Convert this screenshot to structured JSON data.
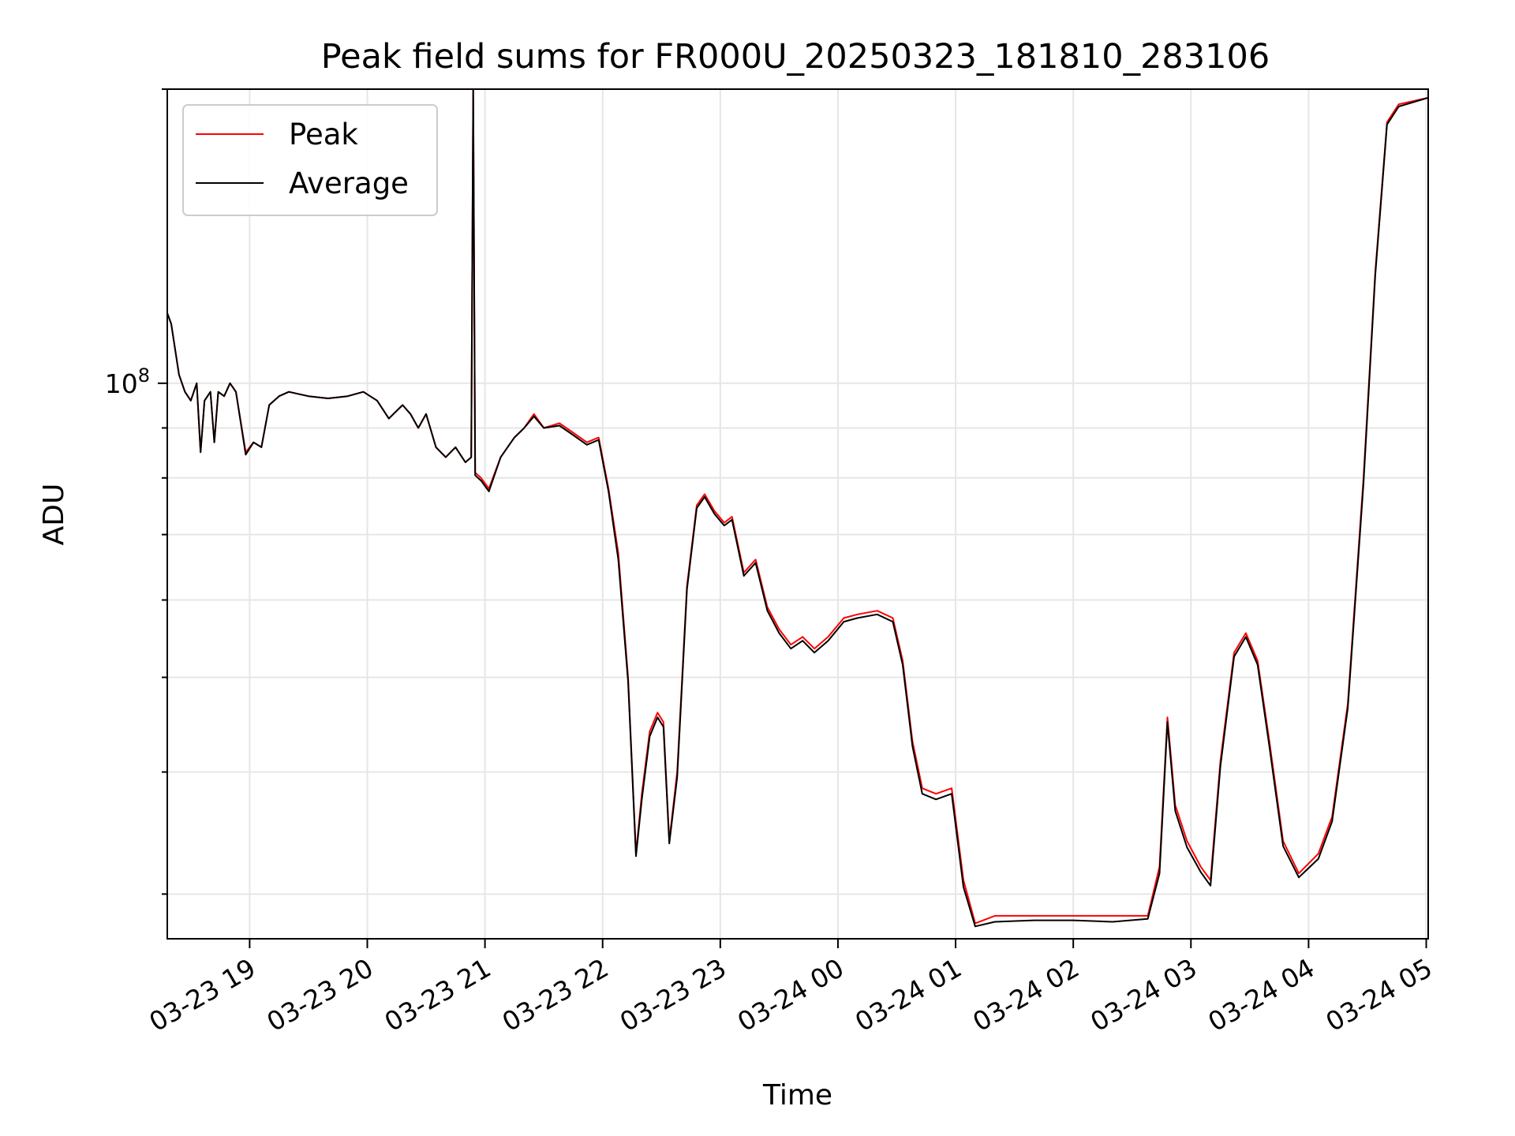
{
  "chart_data": {
    "type": "line",
    "title": "Peak field sums for FR000U_20250323_181810_283106",
    "xlabel": "Time",
    "ylabel": "ADU",
    "y_scale": "log",
    "x_range": [
      "03-23 18:18",
      "03-24 05:01"
    ],
    "ylim": [
      27000000,
      200000000
    ],
    "grid": true,
    "legend_position": "upper-left",
    "x_ticks": [
      "03-23 19",
      "03-23 20",
      "03-23 21",
      "03-23 22",
      "03-23 23",
      "03-24 00",
      "03-24 01",
      "03-24 02",
      "03-24 03",
      "03-24 04",
      "03-24 05"
    ],
    "y_tick_label": {
      "value": 100000000,
      "base": "10",
      "exponent": "8"
    },
    "series": [
      {
        "name": "Peak",
        "color": "#ff0000",
        "points": [
          [
            "03-23 18:18",
            118000000
          ],
          [
            "03-23 18:20",
            115000000
          ],
          [
            "03-23 18:24",
            102000000
          ],
          [
            "03-23 18:27",
            98000000
          ],
          [
            "03-23 18:30",
            96000000
          ],
          [
            "03-23 18:33",
            100000000
          ],
          [
            "03-23 18:35",
            85000000
          ],
          [
            "03-23 18:37",
            96000000
          ],
          [
            "03-23 18:40",
            98000000
          ],
          [
            "03-23 18:42",
            87000000
          ],
          [
            "03-23 18:44",
            98000000
          ],
          [
            "03-23 18:47",
            97000000
          ],
          [
            "03-23 18:50",
            100000000
          ],
          [
            "03-23 18:53",
            98000000
          ],
          [
            "03-23 18:58",
            85000000
          ],
          [
            "03-23 19:02",
            87000000
          ],
          [
            "03-23 19:06",
            86000000
          ],
          [
            "03-23 19:10",
            95000000
          ],
          [
            "03-23 19:15",
            97000000
          ],
          [
            "03-23 19:20",
            98000000
          ],
          [
            "03-23 19:30",
            97000000
          ],
          [
            "03-23 19:40",
            96500000
          ],
          [
            "03-23 19:50",
            97000000
          ],
          [
            "03-23 19:58",
            98000000
          ],
          [
            "03-23 20:05",
            96000000
          ],
          [
            "03-23 20:11",
            92000000
          ],
          [
            "03-23 20:18",
            95000000
          ],
          [
            "03-23 20:22",
            93000000
          ],
          [
            "03-23 20:26",
            90000000
          ],
          [
            "03-23 20:30",
            93000000
          ],
          [
            "03-23 20:35",
            86000000
          ],
          [
            "03-23 20:40",
            84000000
          ],
          [
            "03-23 20:45",
            86000000
          ],
          [
            "03-23 20:50",
            83000000
          ],
          [
            "03-23 20:53",
            84000000
          ],
          [
            "03-23 20:54",
            200000000
          ],
          [
            "03-23 20:55",
            81000000
          ],
          [
            "03-23 20:58",
            80000000
          ],
          [
            "03-23 21:02",
            78000000
          ],
          [
            "03-23 21:08",
            84000000
          ],
          [
            "03-23 21:15",
            88000000
          ],
          [
            "03-23 21:20",
            90000000
          ],
          [
            "03-23 21:25",
            93000000
          ],
          [
            "03-23 21:30",
            90000000
          ],
          [
            "03-23 21:38",
            91000000
          ],
          [
            "03-23 21:45",
            89000000
          ],
          [
            "03-23 21:52",
            87000000
          ],
          [
            "03-23 21:58",
            88000000
          ],
          [
            "03-23 22:03",
            78000000
          ],
          [
            "03-23 22:08",
            67000000
          ],
          [
            "03-23 22:13",
            50000000
          ],
          [
            "03-23 22:17",
            33000000
          ],
          [
            "03-23 22:20",
            38000000
          ],
          [
            "03-23 22:24",
            44000000
          ],
          [
            "03-23 22:28",
            46000000
          ],
          [
            "03-23 22:31",
            45000000
          ],
          [
            "03-23 22:34",
            34000000
          ],
          [
            "03-23 22:38",
            40000000
          ],
          [
            "03-23 22:43",
            62000000
          ],
          [
            "03-23 22:48",
            75000000
          ],
          [
            "03-23 22:52",
            77000000
          ],
          [
            "03-23 22:57",
            74000000
          ],
          [
            "03-23 23:02",
            72000000
          ],
          [
            "03-23 23:06",
            73000000
          ],
          [
            "03-23 23:12",
            64000000
          ],
          [
            "03-23 23:18",
            66000000
          ],
          [
            "03-23 23:24",
            59000000
          ],
          [
            "03-23 23:30",
            56000000
          ],
          [
            "03-23 23:36",
            54000000
          ],
          [
            "03-23 23:42",
            55000000
          ],
          [
            "03-23 23:48",
            53500000
          ],
          [
            "03-23 23:55",
            55000000
          ],
          [
            "03-24 00:03",
            57500000
          ],
          [
            "03-24 00:10",
            58000000
          ],
          [
            "03-24 00:20",
            58500000
          ],
          [
            "03-24 00:28",
            57500000
          ],
          [
            "03-24 00:33",
            52000000
          ],
          [
            "03-24 00:38",
            43000000
          ],
          [
            "03-24 00:43",
            38500000
          ],
          [
            "03-24 00:50",
            38000000
          ],
          [
            "03-24 00:58",
            38500000
          ],
          [
            "03-24 01:04",
            31000000
          ],
          [
            "03-24 01:10",
            28000000
          ],
          [
            "03-24 01:20",
            28500000
          ],
          [
            "03-24 01:40",
            28500000
          ],
          [
            "03-24 02:00",
            28500000
          ],
          [
            "03-24 02:20",
            28500000
          ],
          [
            "03-24 02:38",
            28500000
          ],
          [
            "03-24 02:44",
            32000000
          ],
          [
            "03-24 02:48",
            45500000
          ],
          [
            "03-24 02:52",
            37000000
          ],
          [
            "03-24 02:58",
            34000000
          ],
          [
            "03-24 03:05",
            32000000
          ],
          [
            "03-24 03:10",
            31000000
          ],
          [
            "03-24 03:15",
            41000000
          ],
          [
            "03-24 03:22",
            53000000
          ],
          [
            "03-24 03:28",
            55500000
          ],
          [
            "03-24 03:34",
            52000000
          ],
          [
            "03-24 03:40",
            43000000
          ],
          [
            "03-24 03:47",
            34000000
          ],
          [
            "03-24 03:55",
            31500000
          ],
          [
            "03-24 04:05",
            33000000
          ],
          [
            "03-24 04:12",
            36000000
          ],
          [
            "03-24 04:20",
            47000000
          ],
          [
            "03-24 04:28",
            80000000
          ],
          [
            "03-24 04:34",
            130000000
          ],
          [
            "03-24 04:40",
            185000000
          ],
          [
            "03-24 04:46",
            193000000
          ],
          [
            "03-24 05:01",
            196000000
          ]
        ]
      },
      {
        "name": "Average",
        "color": "#000000",
        "points": [
          [
            "03-23 18:18",
            118000000
          ],
          [
            "03-23 18:20",
            115000000
          ],
          [
            "03-23 18:24",
            102000000
          ],
          [
            "03-23 18:27",
            98000000
          ],
          [
            "03-23 18:30",
            96000000
          ],
          [
            "03-23 18:33",
            100000000
          ],
          [
            "03-23 18:35",
            85000000
          ],
          [
            "03-23 18:37",
            96000000
          ],
          [
            "03-23 18:40",
            98000000
          ],
          [
            "03-23 18:42",
            87000000
          ],
          [
            "03-23 18:44",
            98000000
          ],
          [
            "03-23 18:47",
            97000000
          ],
          [
            "03-23 18:50",
            100000000
          ],
          [
            "03-23 18:53",
            98000000
          ],
          [
            "03-23 18:58",
            84500000
          ],
          [
            "03-23 19:02",
            87000000
          ],
          [
            "03-23 19:06",
            86000000
          ],
          [
            "03-23 19:10",
            95000000
          ],
          [
            "03-23 19:15",
            97000000
          ],
          [
            "03-23 19:20",
            98000000
          ],
          [
            "03-23 19:30",
            97000000
          ],
          [
            "03-23 19:40",
            96500000
          ],
          [
            "03-23 19:50",
            97000000
          ],
          [
            "03-23 19:58",
            98000000
          ],
          [
            "03-23 20:05",
            96000000
          ],
          [
            "03-23 20:11",
            92000000
          ],
          [
            "03-23 20:18",
            95000000
          ],
          [
            "03-23 20:22",
            93000000
          ],
          [
            "03-23 20:26",
            90000000
          ],
          [
            "03-23 20:30",
            93000000
          ],
          [
            "03-23 20:35",
            86000000
          ],
          [
            "03-23 20:40",
            84000000
          ],
          [
            "03-23 20:45",
            86000000
          ],
          [
            "03-23 20:50",
            83000000
          ],
          [
            "03-23 20:53",
            84000000
          ],
          [
            "03-23 20:54",
            200000000
          ],
          [
            "03-23 20:55",
            80500000
          ],
          [
            "03-23 20:58",
            79500000
          ],
          [
            "03-23 21:02",
            77500000
          ],
          [
            "03-23 21:08",
            84000000
          ],
          [
            "03-23 21:15",
            88000000
          ],
          [
            "03-23 21:20",
            90000000
          ],
          [
            "03-23 21:25",
            92500000
          ],
          [
            "03-23 21:30",
            90000000
          ],
          [
            "03-23 21:38",
            90500000
          ],
          [
            "03-23 21:45",
            88500000
          ],
          [
            "03-23 21:52",
            86500000
          ],
          [
            "03-23 21:58",
            87500000
          ],
          [
            "03-23 22:03",
            77500000
          ],
          [
            "03-23 22:08",
            66000000
          ],
          [
            "03-23 22:13",
            49500000
          ],
          [
            "03-23 22:17",
            32800000
          ],
          [
            "03-23 22:20",
            37500000
          ],
          [
            "03-23 22:24",
            43500000
          ],
          [
            "03-23 22:28",
            45500000
          ],
          [
            "03-23 22:31",
            44500000
          ],
          [
            "03-23 22:34",
            33800000
          ],
          [
            "03-23 22:38",
            39500000
          ],
          [
            "03-23 22:43",
            61500000
          ],
          [
            "03-23 22:48",
            74500000
          ],
          [
            "03-23 22:52",
            76500000
          ],
          [
            "03-23 22:57",
            73500000
          ],
          [
            "03-23 23:02",
            71500000
          ],
          [
            "03-23 23:06",
            72500000
          ],
          [
            "03-23 23:12",
            63500000
          ],
          [
            "03-23 23:18",
            65500000
          ],
          [
            "03-23 23:24",
            58500000
          ],
          [
            "03-23 23:30",
            55500000
          ],
          [
            "03-23 23:36",
            53500000
          ],
          [
            "03-23 23:42",
            54500000
          ],
          [
            "03-23 23:48",
            53000000
          ],
          [
            "03-23 23:55",
            54500000
          ],
          [
            "03-24 00:03",
            57000000
          ],
          [
            "03-24 00:10",
            57500000
          ],
          [
            "03-24 00:20",
            58000000
          ],
          [
            "03-24 00:28",
            57000000
          ],
          [
            "03-24 00:33",
            51500000
          ],
          [
            "03-24 00:38",
            42500000
          ],
          [
            "03-24 00:43",
            38000000
          ],
          [
            "03-24 00:50",
            37500000
          ],
          [
            "03-24 00:58",
            38000000
          ],
          [
            "03-24 01:04",
            30500000
          ],
          [
            "03-24 01:10",
            27800000
          ],
          [
            "03-24 01:20",
            28100000
          ],
          [
            "03-24 01:40",
            28200000
          ],
          [
            "03-24 02:00",
            28200000
          ],
          [
            "03-24 02:20",
            28100000
          ],
          [
            "03-24 02:38",
            28300000
          ],
          [
            "03-24 02:44",
            31500000
          ],
          [
            "03-24 02:48",
            45000000
          ],
          [
            "03-24 02:52",
            36500000
          ],
          [
            "03-24 02:58",
            33500000
          ],
          [
            "03-24 03:05",
            31600000
          ],
          [
            "03-24 03:10",
            30600000
          ],
          [
            "03-24 03:15",
            40500000
          ],
          [
            "03-24 03:22",
            52500000
          ],
          [
            "03-24 03:28",
            55000000
          ],
          [
            "03-24 03:34",
            51500000
          ],
          [
            "03-24 03:40",
            42500000
          ],
          [
            "03-24 03:47",
            33600000
          ],
          [
            "03-24 03:55",
            31200000
          ],
          [
            "03-24 04:05",
            32600000
          ],
          [
            "03-24 04:12",
            35600000
          ],
          [
            "03-24 04:20",
            46500000
          ],
          [
            "03-24 04:28",
            79000000
          ],
          [
            "03-24 04:34",
            129000000
          ],
          [
            "03-24 04:40",
            184000000
          ],
          [
            "03-24 04:46",
            192000000
          ],
          [
            "03-24 05:01",
            196000000
          ]
        ]
      }
    ]
  }
}
